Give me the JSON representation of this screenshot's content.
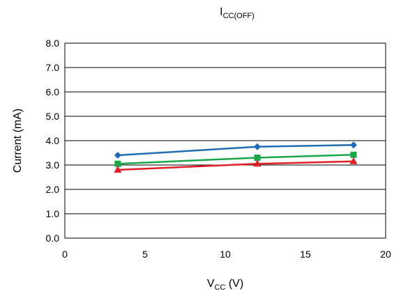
{
  "chart_data": {
    "type": "line",
    "title": {
      "main": "I",
      "sub": "CC(OFF)"
    },
    "xlabel": {
      "main": "V",
      "sub": "CC",
      "suffix": " (V)"
    },
    "ylabel": "Current (mA)",
    "xlim": [
      0,
      20
    ],
    "ylim": [
      0,
      8
    ],
    "x_ticks": [
      "0",
      "5",
      "10",
      "15",
      "20"
    ],
    "y_ticks": [
      "0.0",
      "1.0",
      "2.0",
      "3.0",
      "4.0",
      "5.0",
      "6.0",
      "7.0",
      "8.0"
    ],
    "grid": true,
    "legend": "none",
    "series": [
      {
        "color": "#1f6db4",
        "marker": "diamond",
        "x": [
          3.3,
          12,
          18
        ],
        "y": [
          3.4,
          3.75,
          3.82
        ]
      },
      {
        "color": "#1aa74a",
        "marker": "square",
        "x": [
          3.3,
          12,
          18
        ],
        "y": [
          3.05,
          3.3,
          3.42
        ]
      },
      {
        "color": "#e01f26",
        "marker": "triangle",
        "x": [
          3.3,
          12,
          18
        ],
        "y": [
          2.8,
          3.05,
          3.15
        ]
      }
    ]
  }
}
